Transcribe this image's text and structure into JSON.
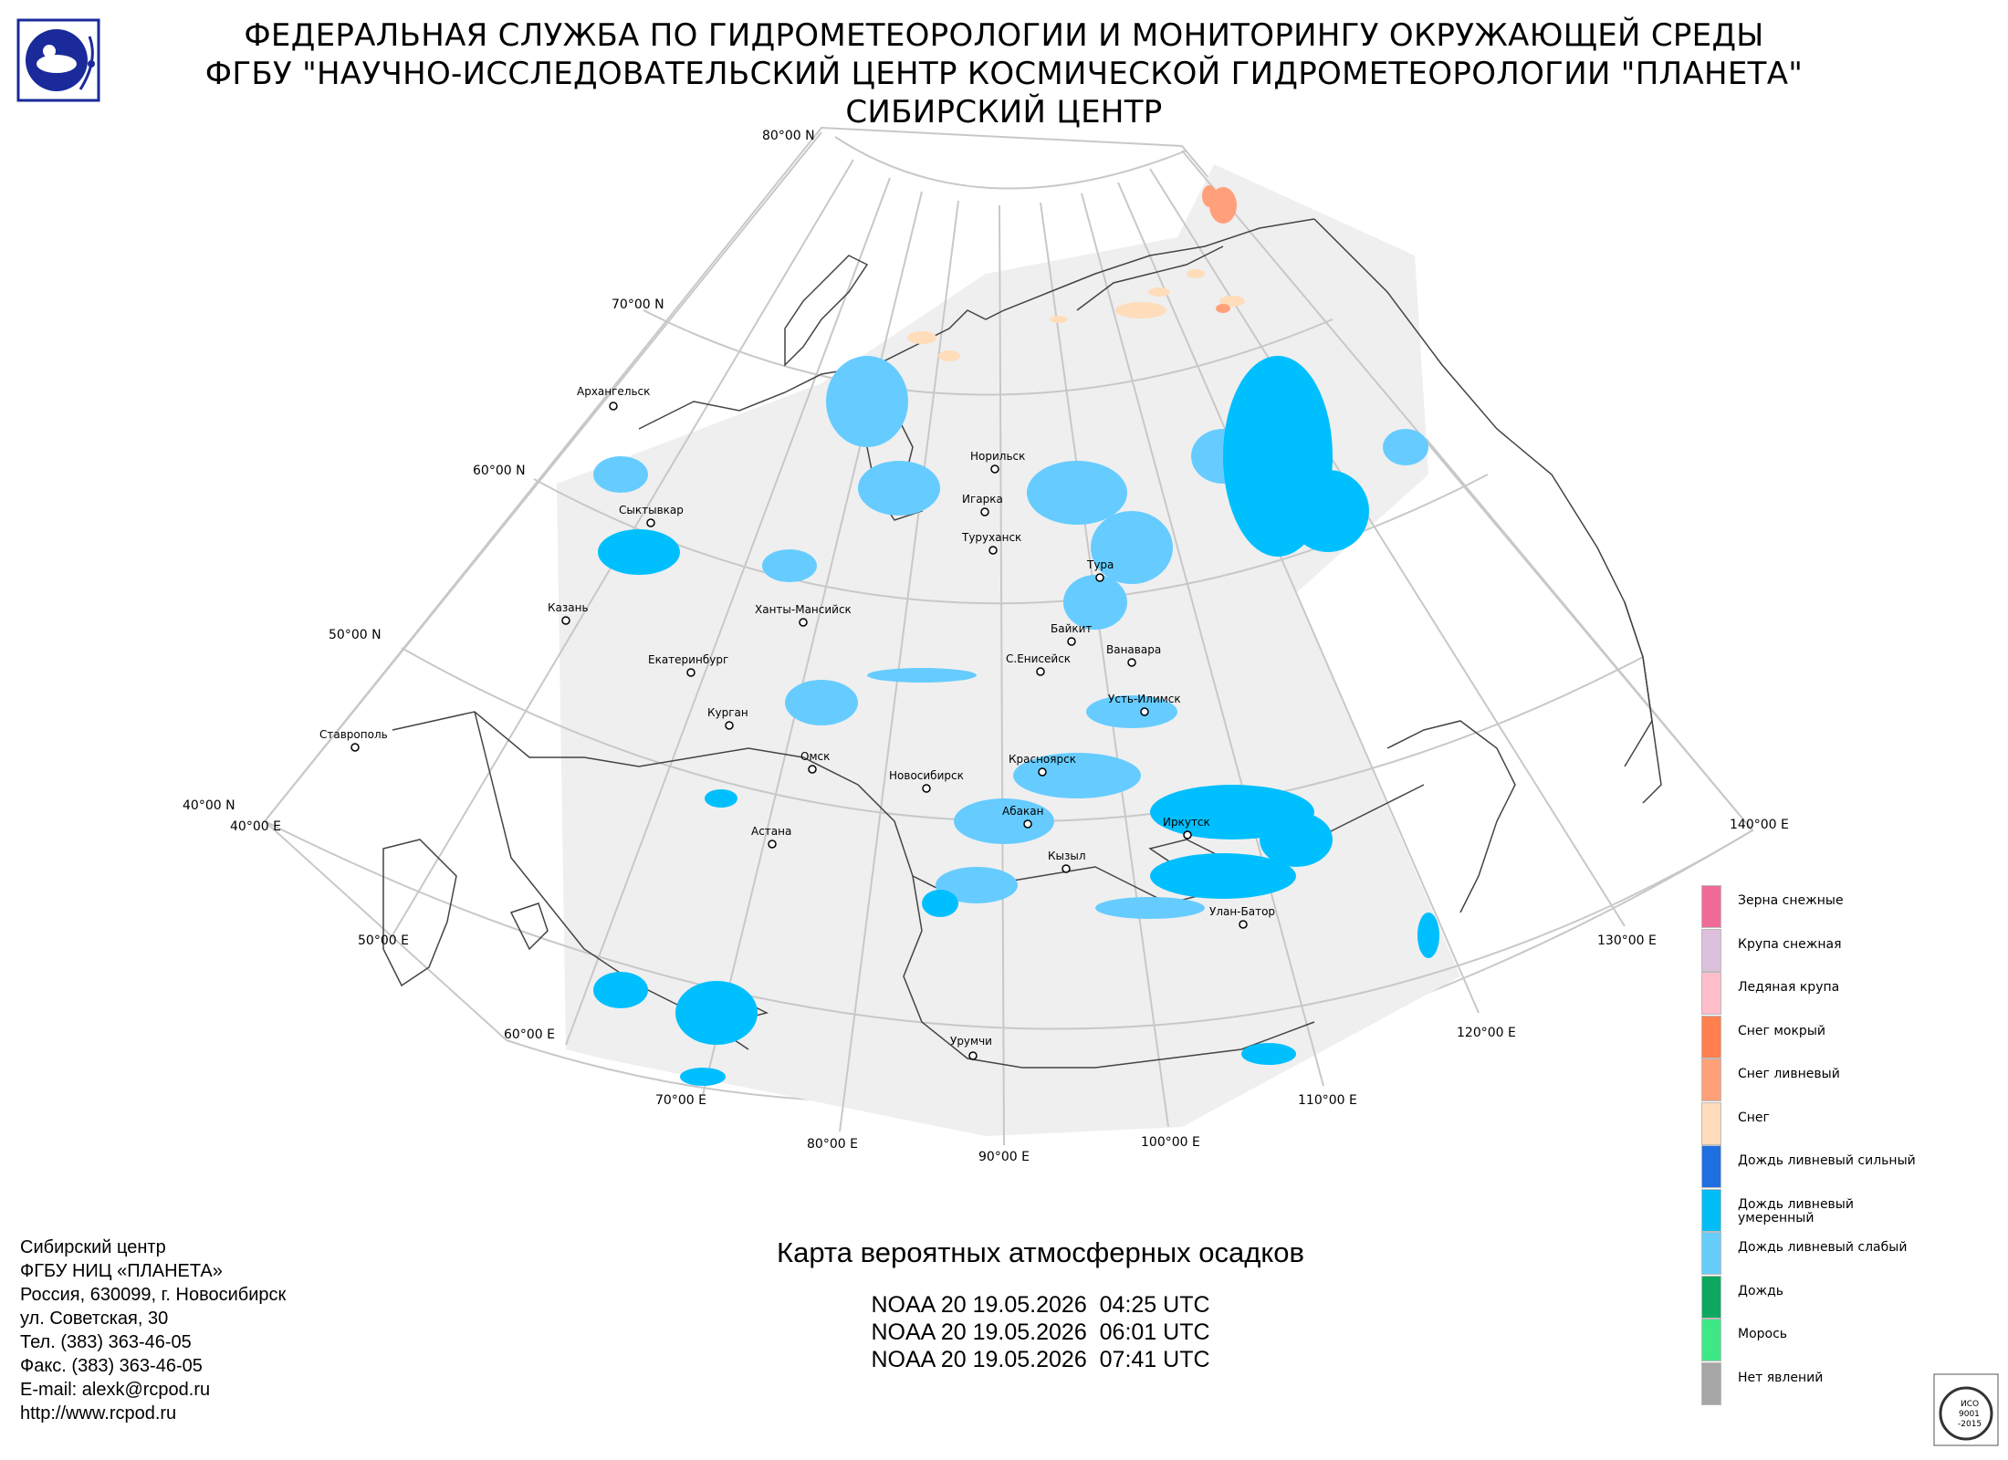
{
  "header": {
    "line1": "ФЕДЕРАЛЬНАЯ СЛУЖБА ПО ГИДРОМЕТЕОРОЛОГИИ И МОНИТОРИНГУ ОКРУЖАЮЩЕЙ СРЕДЫ",
    "line2": "ФГБУ \"НАУЧНО-ИССЛЕДОВАТЕЛЬСКИЙ ЦЕНТР КОСМИЧЕСКОЙ ГИДРОМЕТЕОРОЛОГИИ \"ПЛАНЕТА\"",
    "line3": "СИБИРСКИЙ ЦЕНТР"
  },
  "map": {
    "lat_labels": [
      "80°00 N",
      "70°00 N",
      "60°00 N",
      "50°00 N",
      "40°00 N"
    ],
    "lon_labels": [
      "40°00 E",
      "50°00 E",
      "60°00 E",
      "70°00 E",
      "80°00 E",
      "90°00 E",
      "100°00 E",
      "110°00 E",
      "120°00 E",
      "130°00 E",
      "140°00 E"
    ],
    "cities": [
      "Архангельск",
      "Сыктывкар",
      "Казань",
      "Ставрополь",
      "Ханты-Мансийск",
      "Екатеринбург",
      "Курган",
      "Омск",
      "Астана",
      "Новосибирск",
      "Норильск",
      "Игарка",
      "Туруханск",
      "Тура",
      "Байкит",
      "Ванавара",
      "С.Енисейск",
      "Усть-Илимск",
      "Красноярск",
      "Абакан",
      "Кызыл",
      "Иркутск",
      "Улан-Батор",
      "Урумчи"
    ],
    "colors": {
      "coverage": "#efefef",
      "grid": "#c8c8c8",
      "border": "#444444",
      "rain_weak": "#66ccff",
      "rain_moderate": "#00bfff",
      "snow": "#ffddbb",
      "snow_showers": "#ffa07a"
    }
  },
  "legend": {
    "items": [
      {
        "label": "Зерна снежные",
        "color": "#f06a96"
      },
      {
        "label": "Крупа снежная",
        "color": "#dcc0dc"
      },
      {
        "label": "Ледяная крупа",
        "color": "#ffbcc9"
      },
      {
        "label": "Снег мокрый",
        "color": "#ff7f4f"
      },
      {
        "label": "Снег ливневый",
        "color": "#ffa079"
      },
      {
        "label": "Снег",
        "color": "#ffdcbb"
      },
      {
        "label": "Дождь ливневый сильный",
        "color": "#1e6fe0"
      },
      {
        "label": "Дождь ливневый умеренный",
        "color": "#00bdf6"
      },
      {
        "label": "Дождь ливневый слабый",
        "color": "#66cdfb"
      },
      {
        "label": "Дождь",
        "color": "#0ca860"
      },
      {
        "label": "Морось",
        "color": "#3ee886"
      },
      {
        "label": "Нет явлений",
        "color": "#a6a6a6"
      }
    ]
  },
  "info": {
    "lines": [
      "Сибирский центр",
      "ФГБУ НИЦ «ПЛАНЕТА»",
      "Россия, 630099, г. Новосибирск",
      "ул. Советская, 30",
      "Тел. (383) 363-46-05",
      "Факс. (383) 363-46-05",
      "E-mail: alexk@rcpod.ru",
      "http://www.rcpod.ru"
    ]
  },
  "title": "Карта вероятных атмосферных осадков",
  "passes": [
    "NOAA 20 19.05.2026  04:25 UTC",
    "NOAA 20 19.05.2026  06:01 UTC",
    "NOAA 20 19.05.2026  07:41 UTC"
  ],
  "iso_badge": {
    "text1": "ИСО",
    "text2": "9001",
    "text3": "-2015"
  }
}
